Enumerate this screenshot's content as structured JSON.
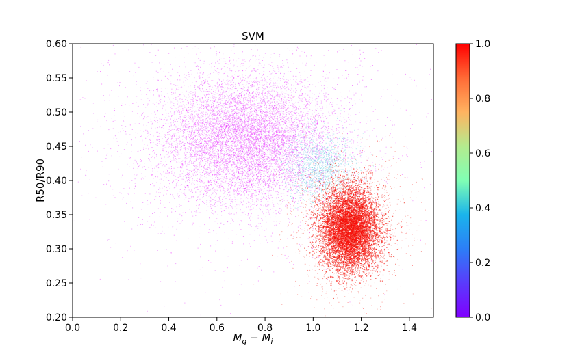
{
  "chart_data": {
    "type": "scatter",
    "title": "SVM",
    "xlabel_main": "M",
    "xlabel_sub1": "g",
    "xlabel_op": " − ",
    "xlabel_main2": "M",
    "xlabel_sub2": "i",
    "ylabel": "R50/R90",
    "xlim": [
      0.0,
      1.5
    ],
    "ylim": [
      0.2,
      0.6
    ],
    "xticks": [
      "0.0",
      "0.2",
      "0.4",
      "0.6",
      "0.8",
      "1.0",
      "1.2",
      "1.4"
    ],
    "xtick_values": [
      0.0,
      0.2,
      0.4,
      0.6,
      0.8,
      1.0,
      1.2,
      1.4
    ],
    "yticks": [
      "0.20",
      "0.25",
      "0.30",
      "0.35",
      "0.40",
      "0.45",
      "0.50",
      "0.55",
      "0.60"
    ],
    "ytick_values": [
      0.2,
      0.25,
      0.3,
      0.35,
      0.4,
      0.45,
      0.5,
      0.55,
      0.6
    ],
    "grid": false,
    "colorbar": {
      "label": "",
      "range": [
        0.0,
        1.0
      ],
      "ticks": [
        "0.0",
        "0.2",
        "0.4",
        "0.6",
        "0.8",
        "1.0"
      ],
      "tick_values": [
        0.0,
        0.2,
        0.4,
        0.6,
        0.8,
        1.0
      ],
      "colormap": "rainbow"
    },
    "clusters": [
      {
        "description": "blue-purple cloud",
        "center_x": 0.72,
        "center_y": 0.46,
        "spread_x": 0.17,
        "spread_y": 0.045,
        "color_value": 0.05
      },
      {
        "description": "red dense clump",
        "center_x": 1.15,
        "center_y": 0.33,
        "spread_x": 0.06,
        "spread_y": 0.03,
        "color_value": 0.98
      },
      {
        "description": "transition band",
        "center_x": 1.03,
        "center_y": 0.42,
        "spread_x": 0.07,
        "spread_y": 0.025,
        "color_value": 0.3
      }
    ],
    "colors": {
      "low": "#8000ff",
      "mid_low": "#2c7ef7",
      "mid": "#5af0c0",
      "mid_high": "#d4dd80",
      "high": "#ff0000"
    }
  }
}
